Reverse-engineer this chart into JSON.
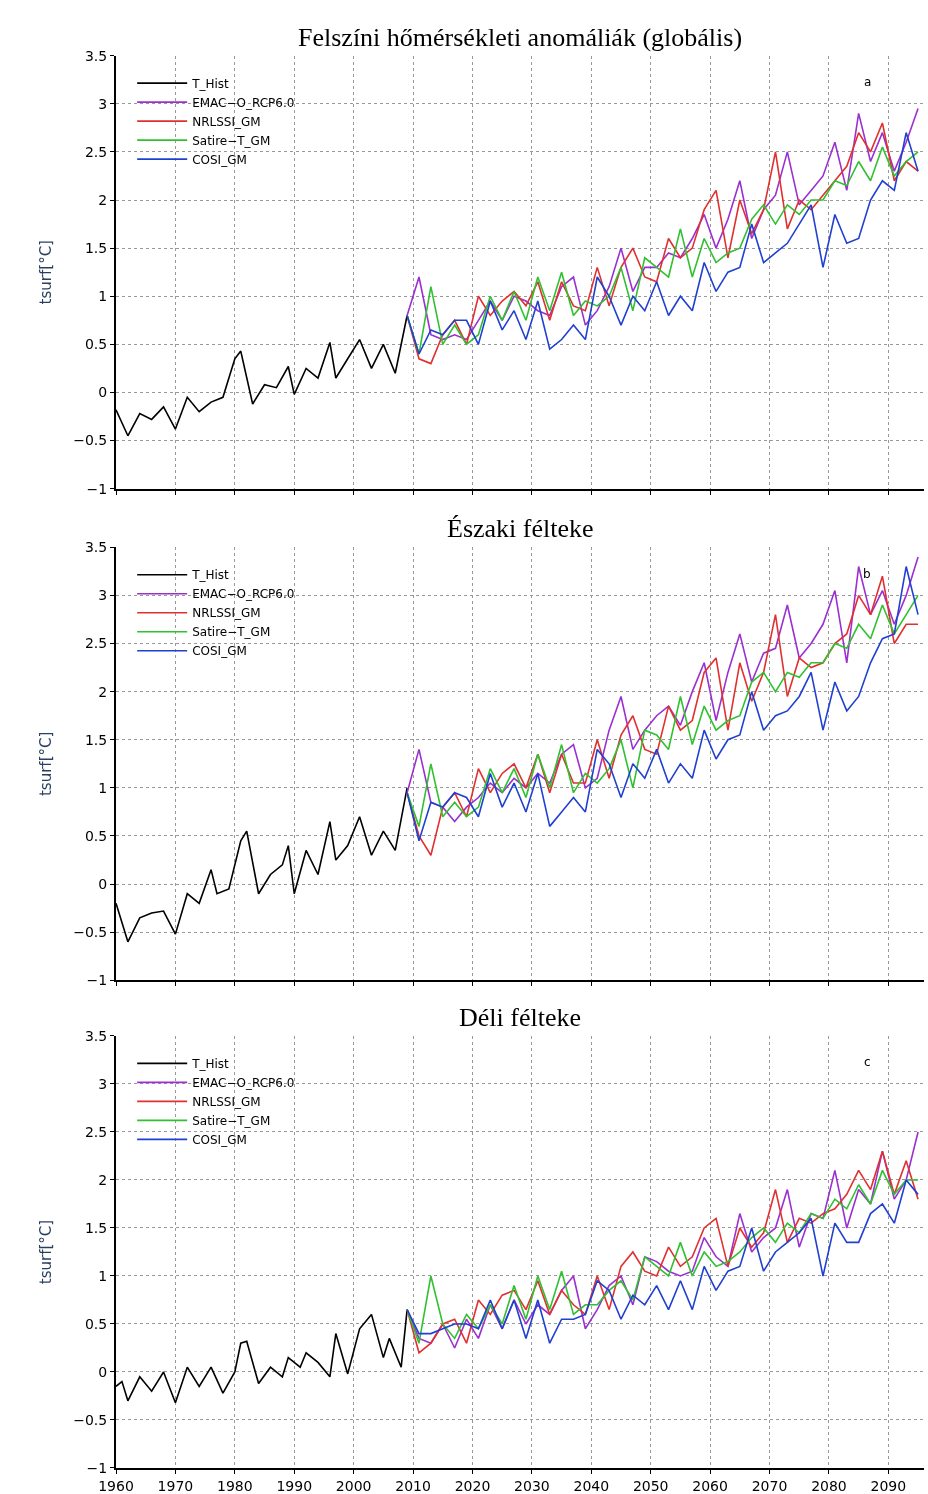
{
  "chart_data": [
    {
      "type": "line",
      "title": "Felszíni hőmérsékleti anomáliák (globális)",
      "ylabel": "tsurf[°C]",
      "annotations": [
        "a"
      ],
      "xlim": [
        1960,
        2096
      ],
      "xticks": [
        1960,
        1970,
        1980,
        1990,
        2000,
        2010,
        2020,
        2030,
        2040,
        2050,
        2060,
        2070,
        2080,
        2090
      ],
      "ylim": [
        -1,
        3.5
      ],
      "yticks": [
        -1,
        -0.5,
        0,
        0.5,
        1,
        1.5,
        2,
        2.5,
        3,
        3.5
      ],
      "grid": true,
      "legend": "top left",
      "tick_labels": "y",
      "x": [
        2009,
        2011,
        2013,
        2015,
        2017,
        2019,
        2021,
        2023,
        2025,
        2027,
        2029,
        2031,
        2033,
        2035,
        2037,
        2039,
        2041,
        2043,
        2045,
        2047,
        2049,
        2051,
        2053,
        2055,
        2057,
        2059,
        2061,
        2063,
        2065,
        2067,
        2069,
        2071,
        2073,
        2075,
        2077,
        2079,
        2081,
        2083,
        2085,
        2087,
        2089,
        2091,
        2093,
        2095
      ],
      "series": [
        {
          "name": "T_Hist",
          "color": "#000000",
          "x": [
            1960,
            1962,
            1964,
            1966,
            1968,
            1970,
            1972,
            1974,
            1976,
            1978,
            1980,
            1981,
            1983,
            1985,
            1987,
            1989,
            1990,
            1992,
            1994,
            1996,
            1997,
            1999,
            2001,
            2003,
            2005,
            2007,
            2009
          ],
          "values": [
            -0.18,
            -0.45,
            -0.22,
            -0.28,
            -0.15,
            -0.38,
            -0.05,
            -0.2,
            -0.1,
            -0.05,
            0.35,
            0.43,
            -0.12,
            0.08,
            0.05,
            0.27,
            -0.02,
            0.25,
            0.15,
            0.52,
            0.15,
            0.35,
            0.55,
            0.25,
            0.5,
            0.2,
            0.8
          ]
        },
        {
          "name": "EMAC−O_RCP6.0",
          "color": "#9b30d0",
          "values": [
            0.8,
            1.2,
            0.6,
            0.55,
            0.6,
            0.55,
            0.75,
            0.95,
            0.75,
            1.0,
            0.95,
            0.85,
            0.8,
            1.1,
            1.2,
            0.7,
            0.85,
            1.1,
            1.5,
            1.05,
            1.3,
            1.3,
            1.45,
            1.4,
            1.6,
            1.85,
            1.5,
            1.8,
            2.2,
            1.6,
            1.9,
            2.05,
            2.5,
            1.95,
            2.1,
            2.25,
            2.6,
            2.1,
            2.9,
            2.4,
            2.7,
            2.3,
            2.6,
            2.95
          ]
        },
        {
          "name": "NRLSSI_GM",
          "color": "#e03030",
          "values": [
            0.8,
            0.35,
            0.3,
            0.6,
            0.75,
            0.5,
            1.0,
            0.8,
            0.95,
            1.05,
            0.9,
            1.15,
            0.75,
            1.15,
            0.9,
            0.85,
            1.3,
            0.9,
            1.3,
            1.5,
            1.2,
            1.15,
            1.6,
            1.4,
            1.5,
            1.9,
            2.1,
            1.4,
            2.0,
            1.65,
            1.9,
            2.5,
            1.7,
            2.0,
            1.9,
            2.05,
            2.2,
            2.35,
            2.7,
            2.5,
            2.8,
            2.2,
            2.4,
            2.3
          ]
        },
        {
          "name": "Satire−T_GM",
          "color": "#30c030",
          "values": [
            0.8,
            0.4,
            1.1,
            0.5,
            0.7,
            0.5,
            0.6,
            1.0,
            0.75,
            1.05,
            0.75,
            1.2,
            0.85,
            1.25,
            0.8,
            0.95,
            0.9,
            1.0,
            1.3,
            0.85,
            1.4,
            1.3,
            1.2,
            1.7,
            1.2,
            1.6,
            1.35,
            1.45,
            1.5,
            1.8,
            1.95,
            1.75,
            1.95,
            1.85,
            2.0,
            2.0,
            2.2,
            2.15,
            2.4,
            2.2,
            2.55,
            2.25,
            2.4,
            2.5
          ]
        },
        {
          "name": "COSI_GM",
          "color": "#2040d0",
          "values": [
            0.8,
            0.4,
            0.65,
            0.6,
            0.75,
            0.75,
            0.5,
            0.95,
            0.65,
            0.85,
            0.55,
            0.95,
            0.45,
            0.55,
            0.7,
            0.55,
            1.2,
            1.0,
            0.7,
            1.0,
            0.85,
            1.15,
            0.8,
            1.0,
            0.85,
            1.35,
            1.05,
            1.25,
            1.3,
            1.75,
            1.35,
            1.45,
            1.55,
            1.75,
            1.95,
            1.3,
            1.85,
            1.55,
            1.6,
            2.0,
            2.2,
            2.1,
            2.7,
            2.3
          ]
        }
      ]
    },
    {
      "type": "line",
      "title": "Északi félteke",
      "ylabel": "tsurf[°C]",
      "annotations": [
        "b"
      ],
      "xlim": [
        1960,
        2096
      ],
      "xticks": [
        1960,
        1970,
        1980,
        1990,
        2000,
        2010,
        2020,
        2030,
        2040,
        2050,
        2060,
        2070,
        2080,
        2090
      ],
      "ylim": [
        -1,
        3.5
      ],
      "yticks": [
        -1,
        -0.5,
        0,
        0.5,
        1,
        1.5,
        2,
        2.5,
        3,
        3.5
      ],
      "grid": true,
      "legend": "top left",
      "tick_labels": "y",
      "x": [
        2009,
        2011,
        2013,
        2015,
        2017,
        2019,
        2021,
        2023,
        2025,
        2027,
        2029,
        2031,
        2033,
        2035,
        2037,
        2039,
        2041,
        2043,
        2045,
        2047,
        2049,
        2051,
        2053,
        2055,
        2057,
        2059,
        2061,
        2063,
        2065,
        2067,
        2069,
        2071,
        2073,
        2075,
        2077,
        2079,
        2081,
        2083,
        2085,
        2087,
        2089,
        2091,
        2093,
        2095
      ],
      "series": [
        {
          "name": "T_Hist",
          "color": "#000000",
          "x": [
            1960,
            1962,
            1964,
            1966,
            1968,
            1970,
            1972,
            1974,
            1976,
            1977,
            1979,
            1981,
            1982,
            1984,
            1986,
            1988,
            1989,
            1990,
            1992,
            1994,
            1996,
            1997,
            1999,
            2001,
            2003,
            2005,
            2007,
            2009
          ],
          "values": [
            -0.2,
            -0.6,
            -0.35,
            -0.3,
            -0.28,
            -0.52,
            -0.1,
            -0.2,
            0.15,
            -0.1,
            -0.05,
            0.45,
            0.55,
            -0.1,
            0.1,
            0.2,
            0.4,
            -0.1,
            0.35,
            0.1,
            0.65,
            0.25,
            0.4,
            0.7,
            0.3,
            0.55,
            0.35,
            1.0
          ]
        },
        {
          "name": "EMAC−O_RCP6.0",
          "color": "#9b30d0",
          "values": [
            0.95,
            1.4,
            0.85,
            0.8,
            0.65,
            0.8,
            0.9,
            1.05,
            0.95,
            1.1,
            1.0,
            1.15,
            1.05,
            1.35,
            1.45,
            1.0,
            1.1,
            1.6,
            1.95,
            1.4,
            1.6,
            1.75,
            1.85,
            1.65,
            2.0,
            2.3,
            1.7,
            2.2,
            2.6,
            2.1,
            2.4,
            2.45,
            2.9,
            2.35,
            2.5,
            2.7,
            3.05,
            2.3,
            3.3,
            2.8,
            3.05,
            2.7,
            3.0,
            3.4
          ]
        },
        {
          "name": "NRLSSI_GM",
          "color": "#e03030",
          "values": [
            0.95,
            0.5,
            0.3,
            0.8,
            0.95,
            0.7,
            1.2,
            0.95,
            1.15,
            1.25,
            1.0,
            1.35,
            0.95,
            1.35,
            1.05,
            1.05,
            1.5,
            1.1,
            1.55,
            1.75,
            1.4,
            1.35,
            1.85,
            1.6,
            1.7,
            2.2,
            2.35,
            1.6,
            2.3,
            1.9,
            2.2,
            2.8,
            1.95,
            2.35,
            2.25,
            2.3,
            2.5,
            2.6,
            3.0,
            2.8,
            3.2,
            2.5,
            2.7,
            2.7
          ]
        },
        {
          "name": "Satire−T_GM",
          "color": "#30c030",
          "values": [
            0.95,
            0.6,
            1.25,
            0.7,
            0.85,
            0.7,
            0.8,
            1.2,
            0.95,
            1.2,
            0.9,
            1.35,
            1.0,
            1.45,
            0.95,
            1.15,
            1.05,
            1.2,
            1.5,
            1.0,
            1.6,
            1.55,
            1.4,
            1.95,
            1.45,
            1.85,
            1.6,
            1.7,
            1.75,
            2.1,
            2.2,
            2.0,
            2.2,
            2.15,
            2.3,
            2.3,
            2.5,
            2.45,
            2.7,
            2.55,
            2.9,
            2.6,
            2.8,
            3.0
          ]
        },
        {
          "name": "COSI_GM",
          "color": "#2040d0",
          "values": [
            0.95,
            0.45,
            0.85,
            0.8,
            0.95,
            0.9,
            0.7,
            1.15,
            0.8,
            1.05,
            0.75,
            1.15,
            0.6,
            0.75,
            0.9,
            0.75,
            1.4,
            1.25,
            0.9,
            1.25,
            1.1,
            1.4,
            1.05,
            1.25,
            1.1,
            1.6,
            1.3,
            1.5,
            1.55,
            2.0,
            1.6,
            1.75,
            1.8,
            1.95,
            2.2,
            1.6,
            2.1,
            1.8,
            1.95,
            2.3,
            2.55,
            2.6,
            3.3,
            2.8
          ]
        }
      ]
    },
    {
      "type": "line",
      "title": "Déli félteke",
      "ylabel": "tsurf[°C]",
      "annotations": [
        "c"
      ],
      "xlim": [
        1960,
        2096
      ],
      "xticks": [
        1960,
        1970,
        1980,
        1990,
        2000,
        2010,
        2020,
        2030,
        2040,
        2050,
        2060,
        2070,
        2080,
        2090
      ],
      "ylim": [
        -1,
        3.5
      ],
      "yticks": [
        -1,
        -0.5,
        0,
        0.5,
        1,
        1.5,
        2,
        2.5,
        3,
        3.5
      ],
      "grid": true,
      "legend": "top left",
      "x": [
        2009,
        2011,
        2013,
        2015,
        2017,
        2019,
        2021,
        2023,
        2025,
        2027,
        2029,
        2031,
        2033,
        2035,
        2037,
        2039,
        2041,
        2043,
        2045,
        2047,
        2049,
        2051,
        2053,
        2055,
        2057,
        2059,
        2061,
        2063,
        2065,
        2067,
        2069,
        2071,
        2073,
        2075,
        2077,
        2079,
        2081,
        2083,
        2085,
        2087,
        2089,
        2091,
        2093,
        2095
      ],
      "series": [
        {
          "name": "T_Hist",
          "color": "#000000",
          "x": [
            1960,
            1961,
            1962,
            1964,
            1966,
            1968,
            1970,
            1972,
            1974,
            1976,
            1978,
            1980,
            1981,
            1982,
            1984,
            1986,
            1988,
            1989,
            1991,
            1992,
            1994,
            1996,
            1997,
            1999,
            2001,
            2003,
            2005,
            2006,
            2008,
            2009
          ],
          "values": [
            -0.15,
            -0.1,
            -0.3,
            -0.05,
            -0.2,
            0.0,
            -0.32,
            0.05,
            -0.15,
            0.05,
            -0.22,
            0.0,
            0.3,
            0.32,
            -0.12,
            0.05,
            -0.05,
            0.15,
            0.05,
            0.2,
            0.1,
            -0.05,
            0.4,
            -0.02,
            0.45,
            0.6,
            0.15,
            0.35,
            0.05,
            0.65
          ]
        },
        {
          "name": "EMAC−O_RCP6.0",
          "color": "#9b30d0",
          "values": [
            0.65,
            0.35,
            0.3,
            0.5,
            0.25,
            0.55,
            0.35,
            0.7,
            0.45,
            0.75,
            0.5,
            0.7,
            0.6,
            0.85,
            1.0,
            0.45,
            0.65,
            0.9,
            1.0,
            0.7,
            1.2,
            1.15,
            1.05,
            1.0,
            1.05,
            1.4,
            1.2,
            1.1,
            1.65,
            1.25,
            1.4,
            1.5,
            1.9,
            1.3,
            1.65,
            1.6,
            2.1,
            1.5,
            1.9,
            1.75,
            2.3,
            1.8,
            2.0,
            2.5
          ]
        },
        {
          "name": "NRLSSI_GM",
          "color": "#e03030",
          "values": [
            0.65,
            0.2,
            0.3,
            0.5,
            0.55,
            0.3,
            0.75,
            0.6,
            0.8,
            0.85,
            0.65,
            0.95,
            0.6,
            0.85,
            0.7,
            0.6,
            1.0,
            0.65,
            1.1,
            1.25,
            1.05,
            1.0,
            1.3,
            1.1,
            1.2,
            1.5,
            1.6,
            1.1,
            1.5,
            1.3,
            1.45,
            1.9,
            1.35,
            1.6,
            1.55,
            1.65,
            1.7,
            1.85,
            2.1,
            1.9,
            2.3,
            1.85,
            2.2,
            1.8
          ]
        },
        {
          "name": "Satire−T_GM",
          "color": "#30c030",
          "values": [
            0.65,
            0.3,
            1.0,
            0.5,
            0.35,
            0.6,
            0.45,
            0.7,
            0.5,
            0.9,
            0.55,
            1.0,
            0.65,
            1.05,
            0.6,
            0.7,
            0.7,
            0.85,
            0.95,
            0.75,
            1.2,
            1.1,
            1.0,
            1.35,
            1.0,
            1.25,
            1.1,
            1.15,
            1.25,
            1.4,
            1.5,
            1.35,
            1.55,
            1.45,
            1.65,
            1.6,
            1.8,
            1.7,
            1.95,
            1.75,
            2.1,
            1.85,
            2.0,
            2.0
          ]
        },
        {
          "name": "COSI_GM",
          "color": "#2040d0",
          "values": [
            0.65,
            0.4,
            0.4,
            0.45,
            0.5,
            0.5,
            0.45,
            0.75,
            0.45,
            0.75,
            0.35,
            0.75,
            0.3,
            0.55,
            0.55,
            0.6,
            0.95,
            0.85,
            0.55,
            0.8,
            0.7,
            0.9,
            0.65,
            0.95,
            0.65,
            1.1,
            0.85,
            1.05,
            1.1,
            1.5,
            1.05,
            1.25,
            1.35,
            1.45,
            1.6,
            1.0,
            1.55,
            1.35,
            1.35,
            1.65,
            1.75,
            1.55,
            2.0,
            1.85
          ]
        }
      ]
    }
  ]
}
